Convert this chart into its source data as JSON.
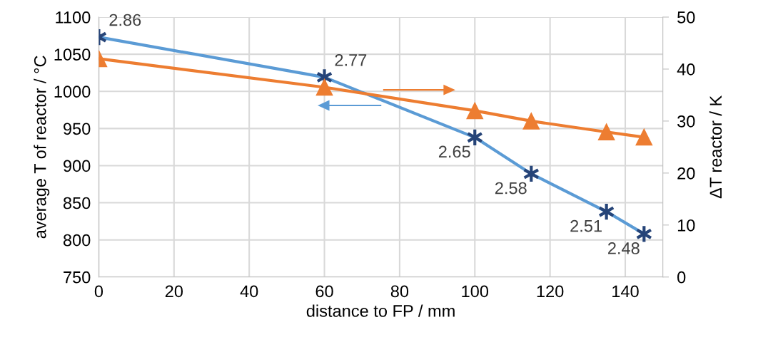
{
  "chart_data": {
    "type": "line",
    "x": [
      0,
      60,
      100,
      115,
      135,
      145
    ],
    "series": [
      {
        "color": "#5b9bd5",
        "colors": [
          "#264478",
          "#264478",
          "#264478",
          "#264478",
          "#264478",
          "#264478"
        ],
        "marker": "cross",
        "values": [
          1073,
          1019,
          938,
          889,
          838,
          808
        ]
      },
      {
        "color": "#ed7d31",
        "marker": "triangle",
        "axis": "y2",
        "values": [
          42.0,
          36.5,
          32.0,
          30.0,
          27.9,
          26.9
        ]
      }
    ],
    "xlabel": "distance to FP / mm",
    "ylabel": "average T of reactor / °C",
    "y2label": "ΔT reactor / K",
    "xlim": [
      0,
      150
    ],
    "xticks": [
      0,
      20,
      40,
      60,
      80,
      100,
      120,
      140
    ],
    "ylim": [
      750,
      1100
    ],
    "yticks": [
      750,
      800,
      850,
      900,
      950,
      1000,
      1050,
      1100
    ],
    "y2lim": [
      0,
      50
    ],
    "y2ticks": [
      0,
      10,
      20,
      30,
      40,
      50
    ],
    "annotations": [
      {
        "text": "2.86",
        "x": 0,
        "y": 1073
      },
      {
        "text": "2.77",
        "x": 60,
        "y": 1019
      },
      {
        "text": "2.65",
        "x": 100,
        "y": 938
      },
      {
        "text": "2.58",
        "x": 115,
        "y": 889
      },
      {
        "text": "2.51",
        "x": 135,
        "y": 838
      },
      {
        "text": "2.48",
        "x": 145,
        "y": 808
      }
    ],
    "grid": true,
    "legend": false,
    "line_style": "solid"
  }
}
